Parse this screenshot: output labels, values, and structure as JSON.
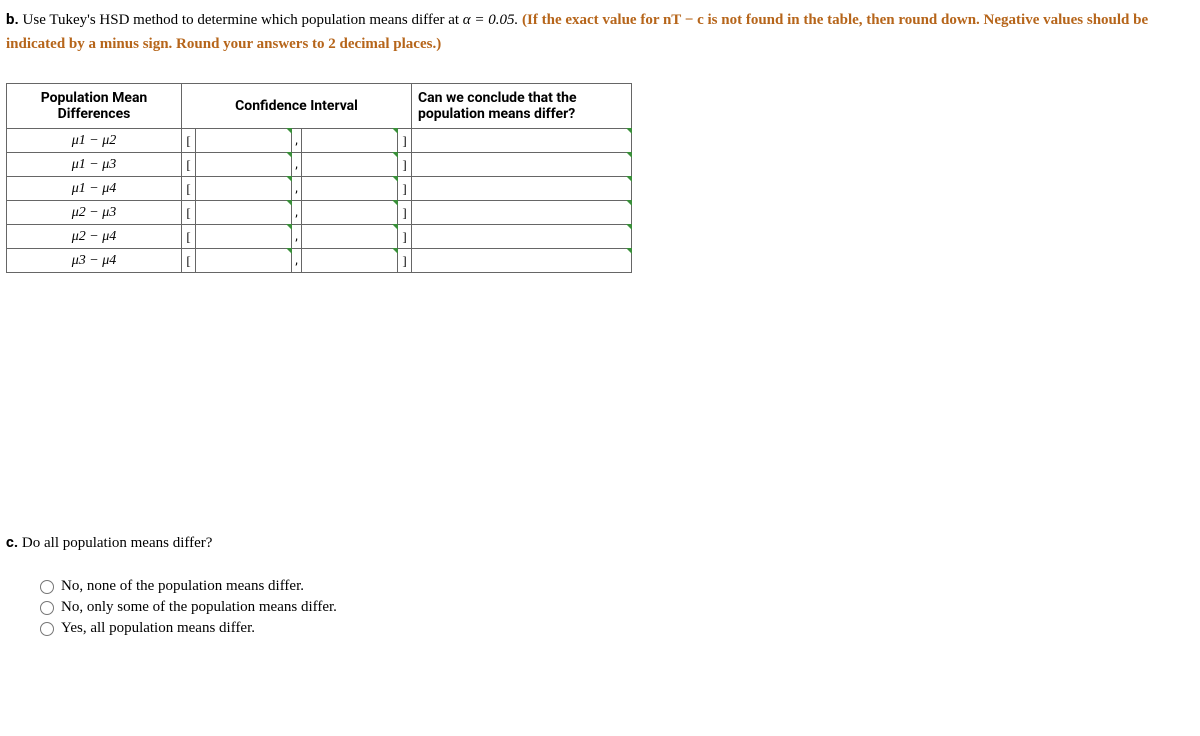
{
  "partB": {
    "label": "b.",
    "lead": "Use Tukey's HSD method to determine which population means differ at",
    "alphaExpr": "α = 0.05.",
    "hint": "(If the exact value for nT − c is not found in the table, then round down. Negative values should be indicated by a minus sign. Round your answers to 2 decimal places.)"
  },
  "table": {
    "headers": {
      "diff": "Population Mean Differences",
      "ci": "Confidence Interval",
      "concl": "Can we conclude that the population means differ?"
    },
    "brackets": {
      "open": "[",
      "close": "]"
    },
    "sep": ",",
    "rows": [
      {
        "pair": "μ1 − μ2",
        "low": "",
        "high": "",
        "concl": ""
      },
      {
        "pair": "μ1 − μ3",
        "low": "",
        "high": "",
        "concl": ""
      },
      {
        "pair": "μ1 − μ4",
        "low": "",
        "high": "",
        "concl": ""
      },
      {
        "pair": "μ2 − μ3",
        "low": "",
        "high": "",
        "concl": ""
      },
      {
        "pair": "μ2 − μ4",
        "low": "",
        "high": "",
        "concl": ""
      },
      {
        "pair": "μ3 − μ4",
        "low": "",
        "high": "",
        "concl": ""
      }
    ]
  },
  "partC": {
    "label": "c.",
    "question": "Do all population means differ?",
    "options": [
      "No, none of the population means differ.",
      "No, only some of the population means differ.",
      "Yes, all population means differ."
    ]
  }
}
